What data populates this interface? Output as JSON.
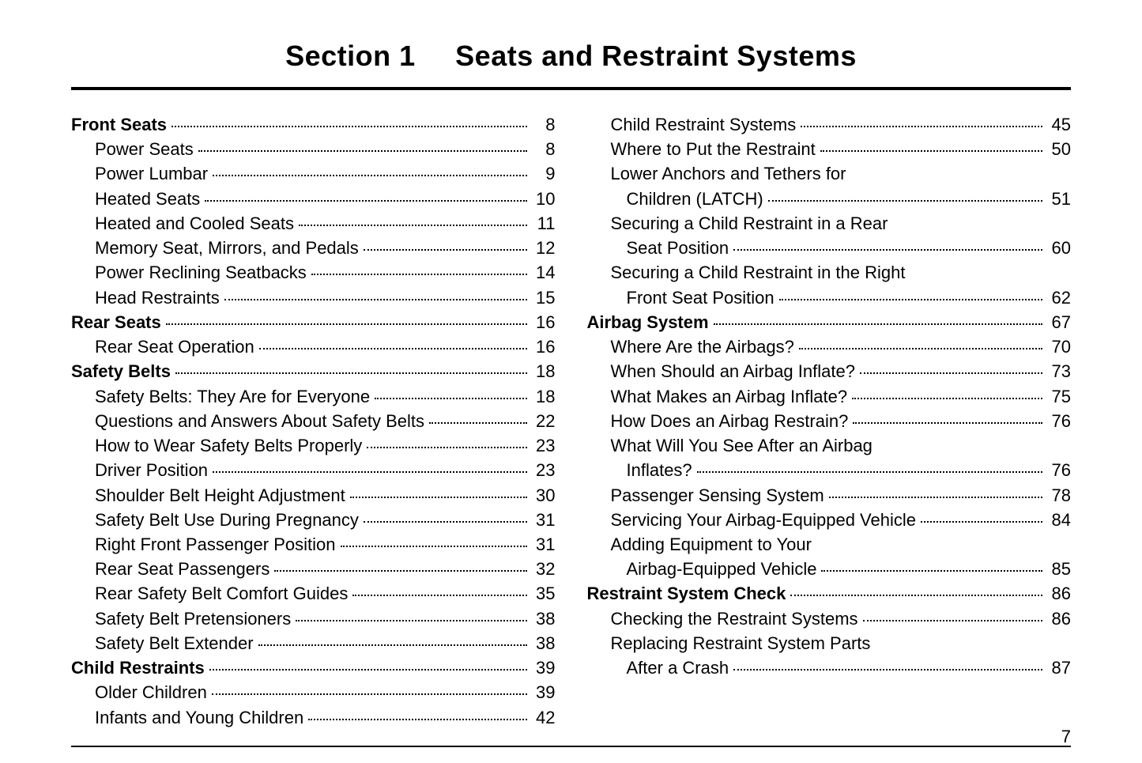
{
  "title_prefix": "Section 1",
  "title_main": "Seats and Restraint Systems",
  "page_number": "7",
  "left_column": [
    {
      "label": "Front Seats",
      "page": "8",
      "bold": true,
      "indent": 0
    },
    {
      "label": "Power Seats",
      "page": "8",
      "bold": false,
      "indent": 1
    },
    {
      "label": "Power Lumbar",
      "page": "9",
      "bold": false,
      "indent": 1
    },
    {
      "label": "Heated Seats",
      "page": "10",
      "bold": false,
      "indent": 1
    },
    {
      "label": "Heated and Cooled Seats",
      "page": "11",
      "bold": false,
      "indent": 1
    },
    {
      "label": "Memory Seat, Mirrors, and Pedals",
      "page": "12",
      "bold": false,
      "indent": 1
    },
    {
      "label": "Power Reclining Seatbacks",
      "page": "14",
      "bold": false,
      "indent": 1
    },
    {
      "label": "Head Restraints",
      "page": "15",
      "bold": false,
      "indent": 1
    },
    {
      "label": "Rear Seats",
      "page": "16",
      "bold": true,
      "indent": 0
    },
    {
      "label": "Rear Seat Operation",
      "page": "16",
      "bold": false,
      "indent": 1
    },
    {
      "label": "Safety Belts",
      "page": "18",
      "bold": true,
      "indent": 0
    },
    {
      "label": "Safety Belts: They Are for Everyone",
      "page": "18",
      "bold": false,
      "indent": 1
    },
    {
      "label": "Questions and Answers About Safety Belts",
      "page": "22",
      "bold": false,
      "indent": 1
    },
    {
      "label": "How to Wear Safety Belts Properly",
      "page": "23",
      "bold": false,
      "indent": 1
    },
    {
      "label": "Driver Position",
      "page": "23",
      "bold": false,
      "indent": 1
    },
    {
      "label": "Shoulder Belt Height Adjustment",
      "page": "30",
      "bold": false,
      "indent": 1
    },
    {
      "label": "Safety Belt Use During Pregnancy",
      "page": "31",
      "bold": false,
      "indent": 1
    },
    {
      "label": "Right Front Passenger Position",
      "page": "31",
      "bold": false,
      "indent": 1
    },
    {
      "label": "Rear Seat Passengers",
      "page": "32",
      "bold": false,
      "indent": 1
    },
    {
      "label": "Rear Safety Belt Comfort Guides",
      "page": "35",
      "bold": false,
      "indent": 1
    },
    {
      "label": "Safety Belt Pretensioners",
      "page": "38",
      "bold": false,
      "indent": 1
    },
    {
      "label": "Safety Belt Extender",
      "page": "38",
      "bold": false,
      "indent": 1
    },
    {
      "label": "Child Restraints",
      "page": "39",
      "bold": true,
      "indent": 0
    },
    {
      "label": "Older Children",
      "page": "39",
      "bold": false,
      "indent": 1
    },
    {
      "label": "Infants and Young Children",
      "page": "42",
      "bold": false,
      "indent": 1
    }
  ],
  "right_column": [
    {
      "label": "Child Restraint Systems",
      "page": "45",
      "bold": false,
      "indent": 1
    },
    {
      "label": "Where to Put the Restraint",
      "page": "50",
      "bold": false,
      "indent": 1
    },
    {
      "label_line1": "Lower Anchors and Tethers for",
      "label_line2": "Children (LATCH)",
      "page": "51",
      "bold": false,
      "indent": 1,
      "wrap": true
    },
    {
      "label_line1": "Securing a Child Restraint in a Rear",
      "label_line2": "Seat Position",
      "page": "60",
      "bold": false,
      "indent": 1,
      "wrap": true
    },
    {
      "label_line1": "Securing a Child Restraint in the Right",
      "label_line2": "Front Seat Position",
      "page": "62",
      "bold": false,
      "indent": 1,
      "wrap": true
    },
    {
      "label": "Airbag System",
      "page": "67",
      "bold": true,
      "indent": 0
    },
    {
      "label": "Where Are the Airbags?",
      "page": "70",
      "bold": false,
      "indent": 1
    },
    {
      "label": "When Should an Airbag Inflate?",
      "page": "73",
      "bold": false,
      "indent": 1
    },
    {
      "label": "What Makes an Airbag Inflate?",
      "page": "75",
      "bold": false,
      "indent": 1
    },
    {
      "label": "How Does an Airbag Restrain?",
      "page": "76",
      "bold": false,
      "indent": 1
    },
    {
      "label_line1": "What Will You See After an Airbag",
      "label_line2": "Inflates?",
      "page": "76",
      "bold": false,
      "indent": 1,
      "wrap": true
    },
    {
      "label": "Passenger Sensing System",
      "page": "78",
      "bold": false,
      "indent": 1
    },
    {
      "label": "Servicing Your Airbag-Equipped Vehicle",
      "page": "84",
      "bold": false,
      "indent": 1
    },
    {
      "label_line1": "Adding Equipment to Your",
      "label_line2": "Airbag-Equipped Vehicle",
      "page": "85",
      "bold": false,
      "indent": 1,
      "wrap": true
    },
    {
      "label": "Restraint System Check",
      "page": "86",
      "bold": true,
      "indent": 0
    },
    {
      "label": "Checking the Restraint Systems",
      "page": "86",
      "bold": false,
      "indent": 1
    },
    {
      "label_line1": "Replacing Restraint System Parts",
      "label_line2": "After a Crash",
      "page": "87",
      "bold": false,
      "indent": 1,
      "wrap": true
    }
  ]
}
